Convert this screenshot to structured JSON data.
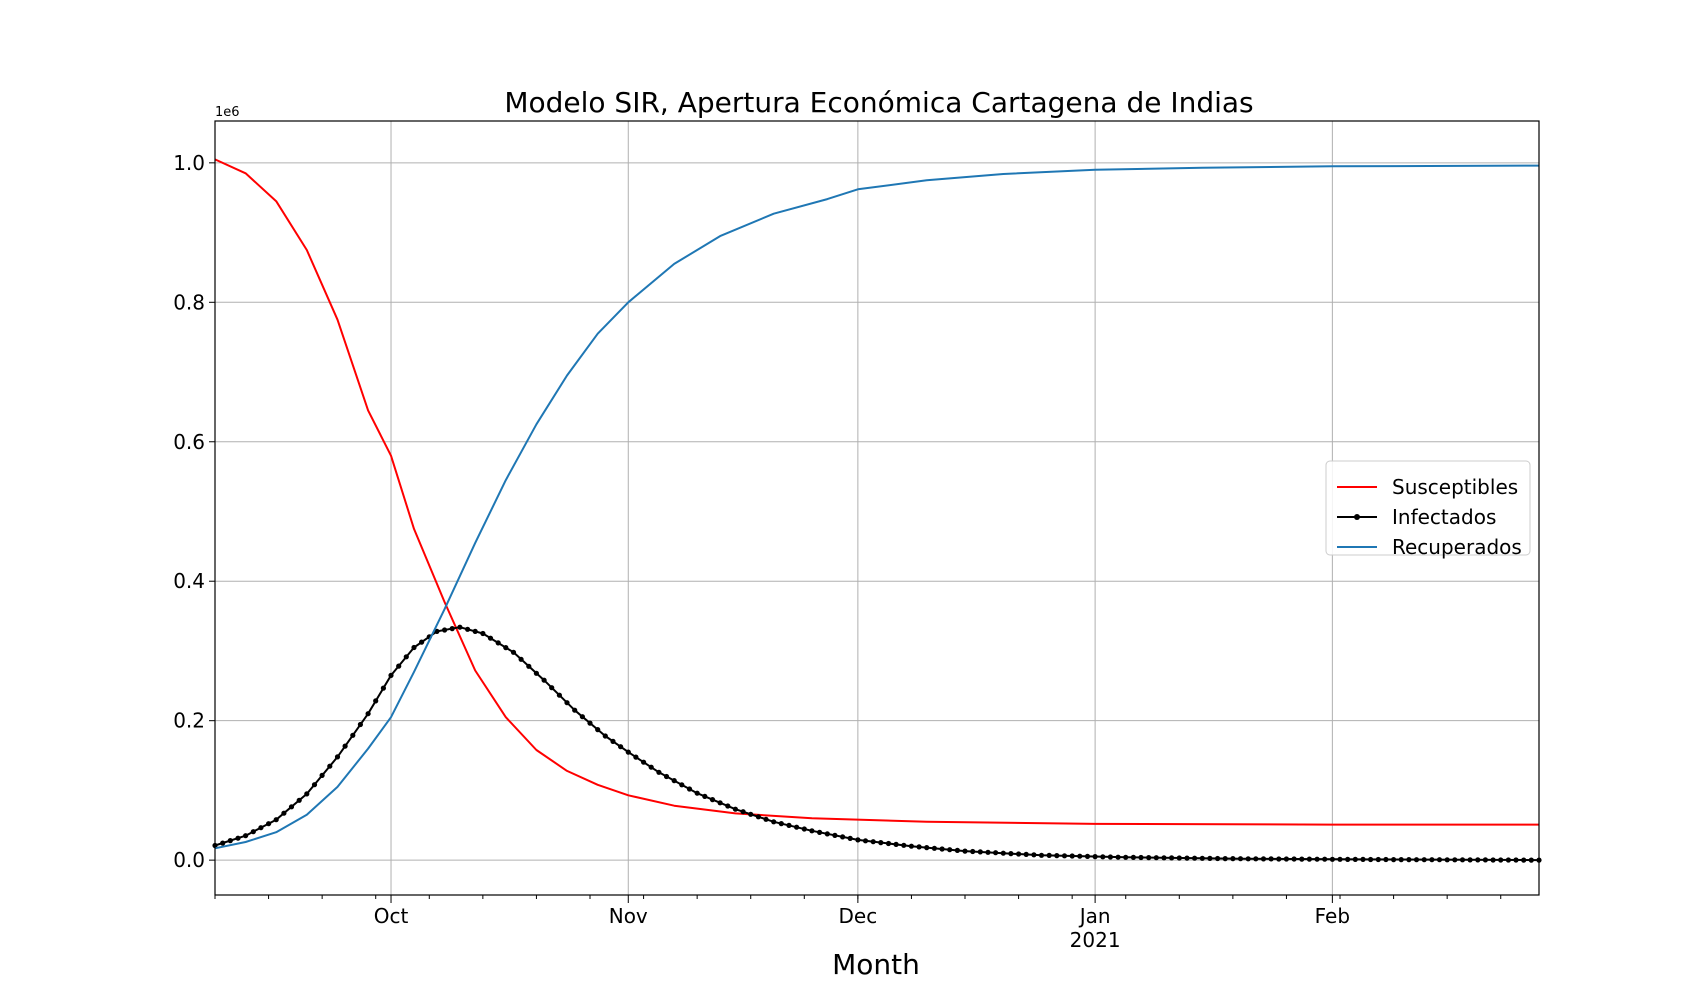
{
  "chart_data": {
    "type": "line",
    "title": "Modelo SIR, Apertura Económica Cartagena de Indias",
    "xlabel": "Month",
    "ylabel": "",
    "y_offset_label": "1e6",
    "x_start": "2020-09-08",
    "x_end": "2021-02-28",
    "ylim": [
      -0.05,
      1.06
    ],
    "grid": true,
    "legend_position": "center-right",
    "x_ticks": [
      {
        "date": "2020-10-01",
        "label": "Oct",
        "sublabel": ""
      },
      {
        "date": "2020-11-01",
        "label": "Nov",
        "sublabel": ""
      },
      {
        "date": "2020-12-01",
        "label": "Dec",
        "sublabel": ""
      },
      {
        "date": "2021-01-01",
        "label": "Jan",
        "sublabel": "2021"
      },
      {
        "date": "2021-02-01",
        "label": "Feb",
        "sublabel": ""
      }
    ],
    "y_ticks": [
      {
        "value": 0.0,
        "label": "0.0"
      },
      {
        "value": 0.2,
        "label": "0.2"
      },
      {
        "value": 0.4,
        "label": "0.4"
      },
      {
        "value": 0.6,
        "label": "0.6"
      },
      {
        "value": 0.8,
        "label": "0.8"
      },
      {
        "value": 1.0,
        "label": "1.0"
      }
    ],
    "series": [
      {
        "name": "Susceptibles",
        "color": "#ff0000",
        "marker": "none",
        "points": [
          [
            "2020-09-08",
            1.005
          ],
          [
            "2020-09-12",
            0.985
          ],
          [
            "2020-09-16",
            0.945
          ],
          [
            "2020-09-20",
            0.875
          ],
          [
            "2020-09-24",
            0.775
          ],
          [
            "2020-09-28",
            0.645
          ],
          [
            "2020-10-01",
            0.58
          ],
          [
            "2020-10-04",
            0.475
          ],
          [
            "2020-10-08",
            0.37
          ],
          [
            "2020-10-12",
            0.272
          ],
          [
            "2020-10-16",
            0.205
          ],
          [
            "2020-10-20",
            0.158
          ],
          [
            "2020-10-24",
            0.128
          ],
          [
            "2020-10-28",
            0.108
          ],
          [
            "2020-11-01",
            0.093
          ],
          [
            "2020-11-07",
            0.078
          ],
          [
            "2020-11-15",
            0.067
          ],
          [
            "2020-11-25",
            0.06
          ],
          [
            "2020-12-10",
            0.055
          ],
          [
            "2021-01-01",
            0.052
          ],
          [
            "2021-02-01",
            0.051
          ],
          [
            "2021-02-28",
            0.051
          ]
        ]
      },
      {
        "name": "Infectados",
        "color": "#000000",
        "marker": "dot",
        "points": [
          [
            "2020-09-08",
            0.021
          ],
          [
            "2020-09-12",
            0.035
          ],
          [
            "2020-09-16",
            0.058
          ],
          [
            "2020-09-20",
            0.095
          ],
          [
            "2020-09-24",
            0.148
          ],
          [
            "2020-09-28",
            0.21
          ],
          [
            "2020-10-01",
            0.265
          ],
          [
            "2020-10-04",
            0.305
          ],
          [
            "2020-10-07",
            0.328
          ],
          [
            "2020-10-10",
            0.334
          ],
          [
            "2020-10-13",
            0.325
          ],
          [
            "2020-10-17",
            0.298
          ],
          [
            "2020-10-21",
            0.258
          ],
          [
            "2020-10-25",
            0.215
          ],
          [
            "2020-10-29",
            0.178
          ],
          [
            "2020-11-01",
            0.155
          ],
          [
            "2020-11-05",
            0.126
          ],
          [
            "2020-11-10",
            0.096
          ],
          [
            "2020-11-15",
            0.073
          ],
          [
            "2020-11-20",
            0.055
          ],
          [
            "2020-11-25",
            0.042
          ],
          [
            "2020-12-01",
            0.029
          ],
          [
            "2020-12-08",
            0.02
          ],
          [
            "2020-12-15",
            0.013
          ],
          [
            "2020-12-25",
            0.007
          ],
          [
            "2021-01-05",
            0.004
          ],
          [
            "2021-01-20",
            0.002
          ],
          [
            "2021-02-05",
            0.001
          ],
          [
            "2021-02-28",
            0.0
          ]
        ]
      },
      {
        "name": "Recuperados",
        "color": "#1f77b4",
        "marker": "none",
        "points": [
          [
            "2020-09-08",
            0.017
          ],
          [
            "2020-09-12",
            0.026
          ],
          [
            "2020-09-16",
            0.04
          ],
          [
            "2020-09-20",
            0.065
          ],
          [
            "2020-09-24",
            0.105
          ],
          [
            "2020-09-28",
            0.16
          ],
          [
            "2020-10-01",
            0.205
          ],
          [
            "2020-10-04",
            0.27
          ],
          [
            "2020-10-08",
            0.36
          ],
          [
            "2020-10-12",
            0.455
          ],
          [
            "2020-10-16",
            0.545
          ],
          [
            "2020-10-20",
            0.625
          ],
          [
            "2020-10-24",
            0.695
          ],
          [
            "2020-10-28",
            0.755
          ],
          [
            "2020-11-01",
            0.8
          ],
          [
            "2020-11-07",
            0.855
          ],
          [
            "2020-11-13",
            0.895
          ],
          [
            "2020-11-20",
            0.927
          ],
          [
            "2020-11-27",
            0.948
          ],
          [
            "2020-12-01",
            0.962
          ],
          [
            "2020-12-10",
            0.975
          ],
          [
            "2020-12-20",
            0.984
          ],
          [
            "2021-01-01",
            0.99
          ],
          [
            "2021-01-15",
            0.993
          ],
          [
            "2021-02-01",
            0.995
          ],
          [
            "2021-02-28",
            0.996
          ]
        ]
      }
    ]
  }
}
